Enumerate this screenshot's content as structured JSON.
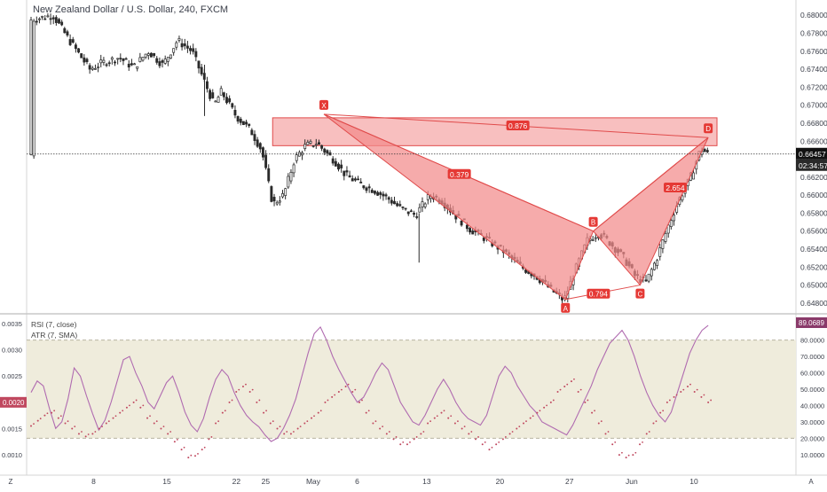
{
  "chart_data": [
    {
      "type": "candlestick",
      "title": "New Zealand Dollar / U.S. Dollar, 240, FXCM",
      "price_axis": {
        "ticks": [
          "0.68000",
          "0.67800",
          "0.67600",
          "0.67400",
          "0.67200",
          "0.67000",
          "0.66800",
          "0.66600",
          "0.66400",
          "0.66200",
          "0.66000",
          "0.65800",
          "0.65600",
          "0.65400",
          "0.65200",
          "0.65000",
          "0.64800"
        ],
        "ylim": [
          0.647,
          0.6817
        ]
      },
      "current_price": "0.66457",
      "countdown": "02:34:57",
      "x_axis": {
        "ticks": [
          "8",
          "15",
          "22",
          "25",
          "May",
          "6",
          "13",
          "20",
          "27",
          "Jun",
          "10"
        ],
        "tick_positions": [
          1.0,
          2.0,
          2.95,
          3.35,
          4.0,
          4.6,
          5.55,
          6.55,
          7.5,
          8.35,
          9.2
        ],
        "corner_labels": [
          "Z",
          "A"
        ]
      },
      "price_path": [
        [
          0.0,
          0.6795
        ],
        [
          0.3,
          0.68
        ],
        [
          0.5,
          0.6775
        ],
        [
          0.8,
          0.674
        ],
        [
          1.0,
          0.6748
        ],
        [
          1.2,
          0.6753
        ],
        [
          1.4,
          0.6742
        ],
        [
          1.6,
          0.676
        ],
        [
          1.8,
          0.6745
        ],
        [
          2.0,
          0.6772
        ],
        [
          2.2,
          0.676
        ],
        [
          2.35,
          0.673
        ],
        [
          2.5,
          0.67
        ],
        [
          2.6,
          0.6715
        ],
        [
          2.8,
          0.6688
        ],
        [
          3.0,
          0.6672
        ],
        [
          3.15,
          0.665
        ],
        [
          3.3,
          0.659
        ],
        [
          3.45,
          0.66
        ],
        [
          3.6,
          0.664
        ],
        [
          3.75,
          0.6655
        ],
        [
          3.9,
          0.6658
        ],
        [
          4.0,
          0.665
        ],
        [
          4.15,
          0.6638
        ],
        [
          4.3,
          0.6622
        ],
        [
          4.5,
          0.6612
        ],
        [
          4.7,
          0.6605
        ],
        [
          4.9,
          0.6595
        ],
        [
          5.05,
          0.6585
        ],
        [
          5.25,
          0.6578
        ],
        [
          5.45,
          0.66
        ],
        [
          5.6,
          0.6595
        ],
        [
          5.8,
          0.6577
        ],
        [
          6.0,
          0.6562
        ],
        [
          6.2,
          0.6552
        ],
        [
          6.45,
          0.6538
        ],
        [
          6.7,
          0.652
        ],
        [
          6.9,
          0.651
        ],
        [
          7.1,
          0.6495
        ],
        [
          7.28,
          0.6483
        ],
        [
          7.45,
          0.652
        ],
        [
          7.6,
          0.655
        ],
        [
          7.75,
          0.6558
        ],
        [
          7.9,
          0.6548
        ],
        [
          8.1,
          0.653
        ],
        [
          8.25,
          0.651
        ],
        [
          8.4,
          0.6503
        ],
        [
          8.55,
          0.653
        ],
        [
          8.7,
          0.6565
        ],
        [
          8.85,
          0.6595
        ],
        [
          9.0,
          0.6618
        ],
        [
          9.15,
          0.6652
        ],
        [
          9.25,
          0.6645
        ]
      ],
      "wicks": [
        {
          "x": 2.37,
          "low": 0.6688,
          "high": 0.6745
        },
        {
          "x": 5.3,
          "low": 0.6525,
          "high": 0.658
        }
      ],
      "harmonic_pattern": {
        "points": [
          {
            "label": "X",
            "x": 4.0,
            "price": 0.669
          },
          {
            "label": "A",
            "x": 7.3,
            "price": 0.6484
          },
          {
            "label": "B",
            "x": 7.68,
            "price": 0.656
          },
          {
            "label": "C",
            "x": 8.32,
            "price": 0.65
          },
          {
            "label": "D",
            "x": 9.25,
            "price": 0.6664
          }
        ],
        "ratios": [
          {
            "label": "0.379",
            "x": 5.85,
            "price": 0.6623
          },
          {
            "label": "2.654",
            "x": 8.8,
            "price": 0.6608
          },
          {
            "label": "0.876",
            "x": 6.65,
            "price": 0.6677
          },
          {
            "label": "0.794",
            "x": 7.75,
            "price": 0.649
          }
        ],
        "zone": {
          "x0": 3.3,
          "x1": 9.37,
          "price_high": 0.6686,
          "price_low": 0.6655
        }
      }
    },
    {
      "type": "line",
      "series": [
        {
          "name": "RSI (7, close)",
          "style": "line",
          "color": "#b06bb0"
        },
        {
          "name": "ATR (7, SMA)",
          "style": "dots",
          "color": "#c0485f"
        }
      ],
      "left_axis": {
        "ticks": [
          "0.0035",
          "0.0030",
          "0.0025",
          "0.0020",
          "0.0015",
          "0.0010"
        ],
        "ylim": [
          0.00085,
          0.00365
        ]
      },
      "right_axis": {
        "ticks": [
          "80.0000",
          "70.0000",
          "60.0000",
          "50.0000",
          "40.0000",
          "30.0000",
          "20.0000",
          "10.0000"
        ],
        "ylim": [
          5,
          95
        ]
      },
      "band": [
        20,
        80
      ],
      "last_values": {
        "rsi": "89.0689",
        "atr": "0.0020"
      },
      "rsi": [
        48,
        55,
        52,
        38,
        26,
        30,
        44,
        63,
        58,
        46,
        35,
        25,
        31,
        42,
        55,
        68,
        70,
        60,
        52,
        42,
        38,
        46,
        54,
        58,
        48,
        36,
        28,
        24,
        32,
        45,
        56,
        62,
        58,
        48,
        40,
        34,
        30,
        27,
        22,
        18,
        20,
        26,
        34,
        44,
        58,
        72,
        84,
        88,
        80,
        70,
        62,
        55,
        48,
        42,
        45,
        52,
        60,
        66,
        62,
        52,
        42,
        36,
        30,
        28,
        34,
        42,
        50,
        56,
        50,
        42,
        36,
        32,
        30,
        28,
        34,
        46,
        58,
        64,
        60,
        52,
        46,
        40,
        36,
        30,
        28,
        26,
        24,
        22,
        28,
        36,
        44,
        52,
        62,
        70,
        78,
        82,
        86,
        80,
        70,
        58,
        48,
        40,
        34,
        30,
        36,
        48,
        60,
        72,
        80,
        86,
        89
      ],
      "atr": [
        0.00155,
        0.00165,
        0.00175,
        0.0018,
        0.0017,
        0.0016,
        0.0015,
        0.0014,
        0.00135,
        0.0014,
        0.0015,
        0.0016,
        0.0017,
        0.0018,
        0.0019,
        0.002,
        0.0019,
        0.0017,
        0.0016,
        0.0015,
        0.0014,
        0.00125,
        0.0011,
        0.00095,
        0.00098,
        0.0011,
        0.0013,
        0.0016,
        0.0018,
        0.002,
        0.0022,
        0.0023,
        0.0022,
        0.002,
        0.0018,
        0.0016,
        0.0015,
        0.0014,
        0.0014,
        0.0015,
        0.0016,
        0.0017,
        0.0018,
        0.002,
        0.0021,
        0.0022,
        0.0023,
        0.0022,
        0.002,
        0.0018,
        0.0016,
        0.0015,
        0.0014,
        0.0013,
        0.0012,
        0.0012,
        0.0013,
        0.0014,
        0.0016,
        0.0017,
        0.0018,
        0.0017,
        0.0016,
        0.0015,
        0.0014,
        0.0013,
        0.0012,
        0.0011,
        0.0012,
        0.0013,
        0.0014,
        0.0015,
        0.0016,
        0.0017,
        0.0018,
        0.0019,
        0.002,
        0.0022,
        0.0023,
        0.0024,
        0.0022,
        0.002,
        0.0018,
        0.0016,
        0.0014,
        0.0012,
        0.001,
        0.00095,
        0.001,
        0.0012,
        0.0014,
        0.0016,
        0.0018,
        0.002,
        0.0021,
        0.0022,
        0.0023,
        0.0022,
        0.0021,
        0.002
      ]
    }
  ],
  "ui": {
    "colors": {
      "candle": "#2b2b2b",
      "pattern_fill": "#f28b8b",
      "pattern_edge": "#e04b4b",
      "label_bg": "#e53935",
      "band_fill": "#efecdc",
      "rsi_line": "#b06bb0",
      "atr_dot": "#c0485f",
      "rsi_last_bg": "#8a3a6a",
      "atr_last_bg": "#c0485f",
      "price_tag_bg": "#111111"
    },
    "icons": {
      "corner_left": "Z",
      "corner_right": "A"
    }
  }
}
